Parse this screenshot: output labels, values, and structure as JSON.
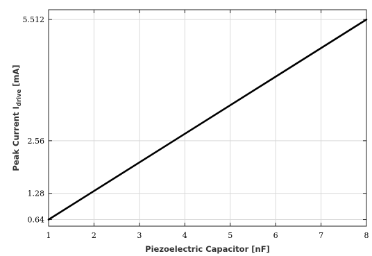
{
  "chart_data": {
    "type": "line",
    "title": "",
    "xlabel": "Piezoelectric Capacitor [nF]",
    "ylabel_main": "Peak Current  I",
    "ylabel_sub": "drive",
    "ylabel_unit": " [mA]",
    "xlim": [
      1,
      8
    ],
    "ylim": [
      0.48,
      5.75
    ],
    "xticks": [
      1,
      2,
      3,
      4,
      5,
      6,
      7,
      8
    ],
    "xtick_labels": [
      "1",
      "2",
      "3",
      "4",
      "5",
      "6",
      "7",
      "8"
    ],
    "yticks": [
      0.64,
      1.28,
      2.56,
      5.512
    ],
    "ytick_labels": [
      "0.64",
      "1.28",
      "2.56",
      "5.512"
    ],
    "grid": true,
    "series": [
      {
        "values_x": [
          1,
          8
        ],
        "values_y": [
          0.64,
          5.512
        ],
        "color": "#000000"
      }
    ]
  }
}
